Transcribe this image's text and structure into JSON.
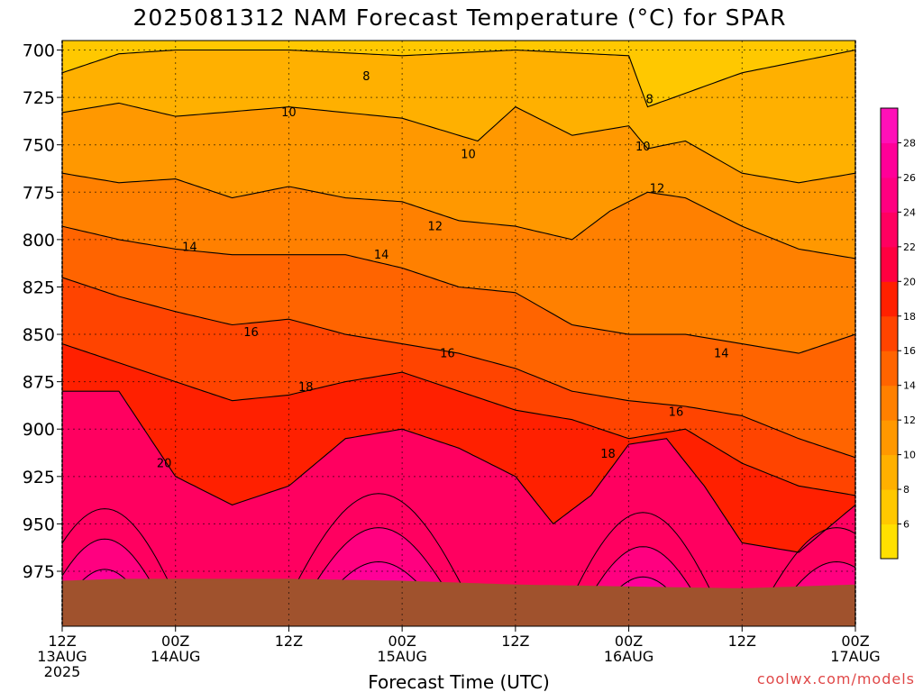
{
  "chart_data": {
    "type": "heatmap",
    "title": "2025081312 NAM Forecast Temperature (°C) for SPAR",
    "xlabel": "Forecast Time (UTC)",
    "ylabel": "",
    "x_ticks": [
      {
        "hour": 0,
        "line1": "12Z",
        "line2": "13AUG",
        "line3": "2025"
      },
      {
        "hour": 12,
        "line1": "00Z",
        "line2": "14AUG",
        "line3": ""
      },
      {
        "hour": 24,
        "line1": "12Z",
        "line2": "",
        "line3": ""
      },
      {
        "hour": 36,
        "line1": "00Z",
        "line2": "15AUG",
        "line3": ""
      },
      {
        "hour": 48,
        "line1": "12Z",
        "line2": "",
        "line3": ""
      },
      {
        "hour": 60,
        "line1": "00Z",
        "line2": "16AUG",
        "line3": ""
      },
      {
        "hour": 72,
        "line1": "12Z",
        "line2": "",
        "line3": ""
      },
      {
        "hour": 84,
        "line1": "00Z",
        "line2": "17AUG",
        "line3": ""
      }
    ],
    "xlim": [
      0,
      84
    ],
    "y_ticks": [
      700,
      725,
      750,
      775,
      800,
      825,
      850,
      875,
      900,
      925,
      950,
      975
    ],
    "ylim": [
      695,
      1004
    ],
    "y_axis": "pressure (hPa), increasing downward",
    "grid": true,
    "colorbar": {
      "levels": [
        4,
        6,
        8,
        10,
        12,
        14,
        16,
        18,
        20,
        22,
        24,
        26,
        28,
        30
      ],
      "tick_labels": [
        "6",
        "8",
        "10",
        "12",
        "14",
        "16",
        "18",
        "20",
        "22",
        "24",
        "26",
        "28"
      ],
      "colors": [
        "#ffe000",
        "#ffc800",
        "#ffb000",
        "#ff9800",
        "#ff8000",
        "#ff6400",
        "#ff4400",
        "#ff2000",
        "#ff0040",
        "#ff0060",
        "#ff0080",
        "#ff0098",
        "#ff10b8"
      ]
    },
    "terrain_color": "#a0522d",
    "surface_pressure": [
      {
        "hour": 0,
        "p": 980
      },
      {
        "hour": 6,
        "p": 979
      },
      {
        "hour": 12,
        "p": 979
      },
      {
        "hour": 24,
        "p": 979
      },
      {
        "hour": 36,
        "p": 980
      },
      {
        "hour": 48,
        "p": 982
      },
      {
        "hour": 60,
        "p": 983
      },
      {
        "hour": 72,
        "p": 984
      },
      {
        "hour": 78,
        "p": 983
      },
      {
        "hour": 84,
        "p": 982
      }
    ],
    "isotherms": [
      {
        "value": 8,
        "points": [
          [
            0,
            712
          ],
          [
            6,
            702
          ],
          [
            12,
            700
          ],
          [
            24,
            700
          ],
          [
            36,
            703
          ],
          [
            48,
            700
          ],
          [
            60,
            703
          ],
          [
            62,
            730
          ],
          [
            72,
            712
          ],
          [
            84,
            700
          ]
        ]
      },
      {
        "value": 10,
        "points": [
          [
            0,
            733
          ],
          [
            6,
            728
          ],
          [
            12,
            735
          ],
          [
            24,
            730
          ],
          [
            36,
            736
          ],
          [
            44,
            748
          ],
          [
            48,
            730
          ],
          [
            54,
            745
          ],
          [
            60,
            740
          ],
          [
            62,
            752
          ],
          [
            66,
            748
          ],
          [
            72,
            765
          ],
          [
            78,
            770
          ],
          [
            84,
            765
          ]
        ]
      },
      {
        "value": 12,
        "points": [
          [
            0,
            765
          ],
          [
            6,
            770
          ],
          [
            12,
            768
          ],
          [
            18,
            778
          ],
          [
            24,
            772
          ],
          [
            30,
            778
          ],
          [
            36,
            780
          ],
          [
            42,
            790
          ],
          [
            48,
            793
          ],
          [
            54,
            800
          ],
          [
            58,
            785
          ],
          [
            62,
            775
          ],
          [
            66,
            778
          ],
          [
            72,
            793
          ],
          [
            78,
            805
          ],
          [
            84,
            810
          ]
        ]
      },
      {
        "value": 14,
        "points": [
          [
            0,
            793
          ],
          [
            6,
            800
          ],
          [
            12,
            805
          ],
          [
            18,
            808
          ],
          [
            24,
            808
          ],
          [
            30,
            808
          ],
          [
            36,
            815
          ],
          [
            42,
            825
          ],
          [
            48,
            828
          ],
          [
            54,
            845
          ],
          [
            60,
            850
          ],
          [
            66,
            850
          ],
          [
            72,
            855
          ],
          [
            78,
            860
          ],
          [
            84,
            850
          ]
        ]
      },
      {
        "value": 16,
        "points": [
          [
            0,
            820
          ],
          [
            6,
            830
          ],
          [
            12,
            838
          ],
          [
            18,
            845
          ],
          [
            24,
            842
          ],
          [
            30,
            850
          ],
          [
            36,
            855
          ],
          [
            42,
            860
          ],
          [
            48,
            868
          ],
          [
            54,
            880
          ],
          [
            60,
            885
          ],
          [
            66,
            888
          ],
          [
            72,
            893
          ],
          [
            78,
            905
          ],
          [
            84,
            915
          ]
        ]
      },
      {
        "value": 18,
        "points": [
          [
            0,
            855
          ],
          [
            6,
            865
          ],
          [
            12,
            875
          ],
          [
            18,
            885
          ],
          [
            24,
            882
          ],
          [
            30,
            875
          ],
          [
            36,
            870
          ],
          [
            42,
            880
          ],
          [
            48,
            890
          ],
          [
            54,
            895
          ],
          [
            60,
            905
          ],
          [
            66,
            900
          ],
          [
            72,
            918
          ],
          [
            78,
            930
          ],
          [
            84,
            935
          ]
        ]
      },
      {
        "value": 20,
        "points": [
          [
            0,
            880
          ],
          [
            6,
            880
          ],
          [
            12,
            925
          ],
          [
            18,
            940
          ],
          [
            24,
            930
          ],
          [
            30,
            905
          ],
          [
            36,
            900
          ],
          [
            42,
            910
          ],
          [
            48,
            925
          ],
          [
            52,
            950
          ],
          [
            56,
            935
          ],
          [
            60,
            908
          ],
          [
            64,
            905
          ],
          [
            68,
            930
          ],
          [
            72,
            960
          ],
          [
            78,
            965
          ],
          [
            84,
            940
          ]
        ]
      }
    ],
    "contour_labels": [
      {
        "text": "8",
        "hour": 32.2,
        "p": 716
      },
      {
        "text": "8",
        "hour": 62.2,
        "p": 728
      },
      {
        "text": "10",
        "hour": 24.0,
        "p": 735
      },
      {
        "text": "10",
        "hour": 43.0,
        "p": 757
      },
      {
        "text": "10",
        "hour": 61.5,
        "p": 753
      },
      {
        "text": "12",
        "hour": 39.5,
        "p": 795
      },
      {
        "text": "12",
        "hour": 63.0,
        "p": 775
      },
      {
        "text": "14",
        "hour": 13.5,
        "p": 806
      },
      {
        "text": "14",
        "hour": 33.8,
        "p": 810
      },
      {
        "text": "14",
        "hour": 69.8,
        "p": 862
      },
      {
        "text": "16",
        "hour": 20.0,
        "p": 851
      },
      {
        "text": "16",
        "hour": 40.8,
        "p": 862
      },
      {
        "text": "16",
        "hour": 65.0,
        "p": 893
      },
      {
        "text": "18",
        "hour": 25.8,
        "p": 880
      },
      {
        "text": "18",
        "hour": 57.8,
        "p": 915
      },
      {
        "text": "20",
        "hour": 10.8,
        "p": 920
      }
    ],
    "credit": "coolwx.com/models"
  }
}
